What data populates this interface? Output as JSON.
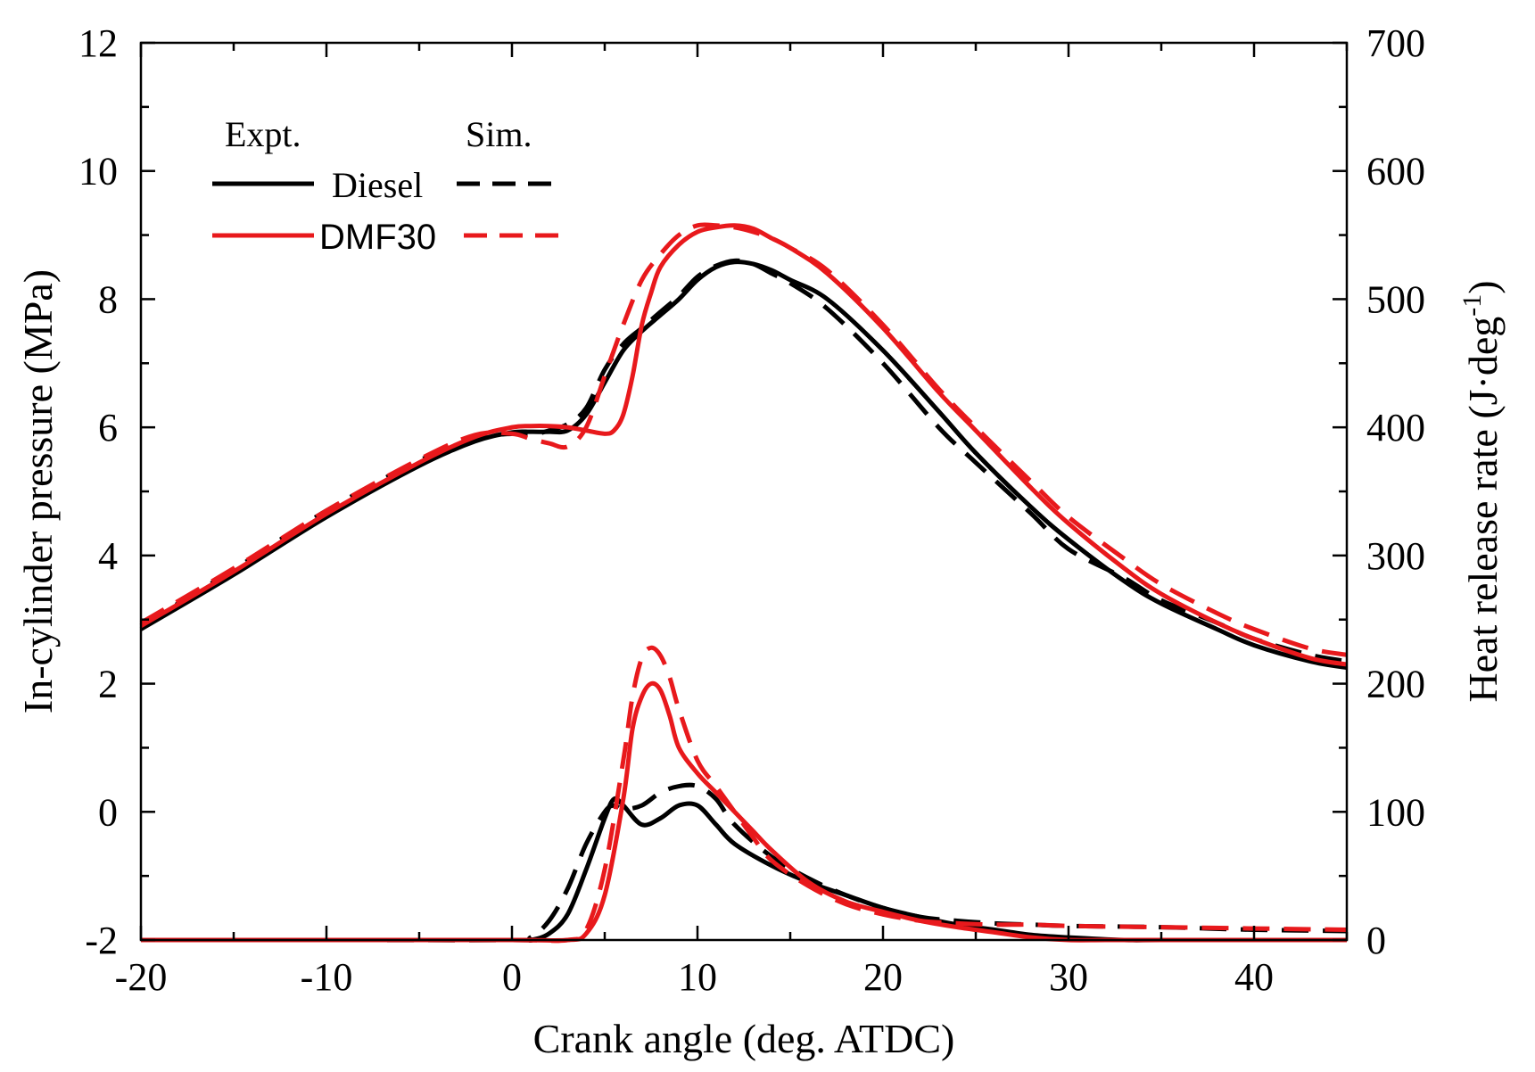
{
  "chart_data": {
    "type": "line",
    "title": "",
    "xlabel": "Crank angle (deg. ATDC)",
    "ylabel_left": "In-cylinder pressure (MPa)",
    "ylabel_right": "Heat release rate (J·deg",
    "ylabel_right_sup": "-1",
    "ylabel_right_close": ")",
    "xlim": [
      -20,
      45
    ],
    "ylim_left": [
      -2,
      12
    ],
    "ylim_right": [
      0,
      700
    ],
    "x_ticks": [
      -20,
      -10,
      0,
      10,
      20,
      30,
      40
    ],
    "x_tick_labels": [
      "-20",
      "-10",
      "0",
      "10",
      "20",
      "30",
      "40"
    ],
    "y_left_ticks": [
      -2,
      0,
      2,
      4,
      6,
      8,
      10,
      12
    ],
    "y_left_tick_labels": [
      "-2",
      "0",
      "2",
      "4",
      "6",
      "8",
      "10",
      "12"
    ],
    "y_right_ticks": [
      0,
      100,
      200,
      300,
      400,
      500,
      600,
      700
    ],
    "y_right_tick_labels": [
      "0",
      "100",
      "200",
      "300",
      "400",
      "500",
      "600",
      "700"
    ],
    "legend": {
      "placement": "top-left",
      "header_expt": "Expt.",
      "header_sim": "Sim.",
      "entries": [
        {
          "label": "Diesel",
          "color": "#000000"
        },
        {
          "label": "DMF30",
          "color": "#e8191c"
        }
      ]
    },
    "series": [
      {
        "name": "Diesel pressure Expt.",
        "axis": "left",
        "color": "#000000",
        "dash": "solid",
        "x": [
          -20,
          -15,
          -10,
          -5,
          -2,
          0,
          1,
          2,
          3,
          4,
          5,
          6,
          7,
          8,
          9,
          10,
          11,
          12,
          13,
          14,
          15,
          17,
          20,
          23,
          25,
          28,
          30,
          33,
          35,
          38,
          40,
          43,
          45
        ],
        "y": [
          2.85,
          3.7,
          4.6,
          5.4,
          5.78,
          5.92,
          5.93,
          5.93,
          5.95,
          6.2,
          6.7,
          7.2,
          7.5,
          7.75,
          8.0,
          8.3,
          8.5,
          8.58,
          8.55,
          8.45,
          8.3,
          8.0,
          7.2,
          6.25,
          5.6,
          4.75,
          4.25,
          3.6,
          3.25,
          2.85,
          2.6,
          2.35,
          2.25
        ]
      },
      {
        "name": "Diesel pressure Sim.",
        "axis": "left",
        "color": "#000000",
        "dash": "dashed",
        "x": [
          -20,
          -15,
          -10,
          -5,
          -2,
          0,
          1,
          2,
          3,
          4,
          5,
          6,
          7,
          8,
          9,
          10,
          11,
          12,
          13,
          14,
          15,
          17,
          20,
          23,
          25,
          28,
          30,
          33,
          35,
          38,
          40,
          43,
          45
        ],
        "y": [
          2.9,
          3.78,
          4.7,
          5.48,
          5.82,
          5.9,
          5.88,
          5.95,
          6.05,
          6.3,
          6.9,
          7.3,
          7.55,
          7.8,
          8.05,
          8.35,
          8.52,
          8.6,
          8.55,
          8.4,
          8.25,
          7.85,
          7.0,
          6.0,
          5.45,
          4.65,
          4.1,
          3.65,
          3.3,
          2.95,
          2.7,
          2.45,
          2.35
        ]
      },
      {
        "name": "DMF30 pressure Expt.",
        "axis": "left",
        "color": "#e8191c",
        "dash": "solid",
        "x": [
          -20,
          -15,
          -10,
          -5,
          -2,
          0,
          1,
          2,
          3,
          4,
          5,
          5.5,
          6,
          6.5,
          7,
          7.5,
          8,
          9,
          10,
          11,
          12,
          13,
          14,
          15,
          17,
          20,
          23,
          25,
          28,
          30,
          33,
          35,
          38,
          40,
          43,
          45
        ],
        "y": [
          2.9,
          3.75,
          4.65,
          5.45,
          5.85,
          6.0,
          6.02,
          6.02,
          6.0,
          5.95,
          5.9,
          5.95,
          6.2,
          6.8,
          7.6,
          8.1,
          8.5,
          8.85,
          9.05,
          9.12,
          9.15,
          9.1,
          8.95,
          8.8,
          8.4,
          7.55,
          6.55,
          5.95,
          5.05,
          4.5,
          3.8,
          3.4,
          2.95,
          2.7,
          2.4,
          2.3
        ]
      },
      {
        "name": "DMF30 pressure Sim.",
        "axis": "left",
        "color": "#e8191c",
        "dash": "dashed",
        "x": [
          -20,
          -15,
          -10,
          -5,
          -2,
          0,
          1,
          2,
          3,
          4,
          5,
          6,
          7,
          8,
          9,
          10,
          11,
          12,
          13,
          14,
          15,
          17,
          20,
          23,
          25,
          28,
          30,
          33,
          35,
          38,
          40,
          43,
          45
        ],
        "y": [
          2.95,
          3.8,
          4.7,
          5.5,
          5.88,
          5.9,
          5.82,
          5.75,
          5.7,
          6.0,
          6.8,
          7.6,
          8.3,
          8.7,
          9.0,
          9.15,
          9.15,
          9.12,
          9.05,
          8.95,
          8.8,
          8.45,
          7.6,
          6.6,
          6.0,
          5.15,
          4.6,
          3.95,
          3.55,
          3.1,
          2.85,
          2.55,
          2.45
        ]
      },
      {
        "name": "Diesel HRR Expt.",
        "axis": "right",
        "color": "#000000",
        "dash": "solid",
        "x": [
          -20,
          -10,
          0,
          1,
          2,
          3,
          4,
          5,
          5.5,
          6,
          7,
          8,
          9,
          10,
          11,
          12,
          14,
          16,
          18,
          20,
          22,
          24,
          26,
          28,
          30,
          33,
          35,
          40,
          45
        ],
        "y": [
          0,
          0,
          0,
          0,
          5,
          20,
          55,
          95,
          110,
          105,
          90,
          95,
          105,
          105,
          90,
          75,
          58,
          45,
          35,
          25,
          18,
          12,
          8,
          4,
          2,
          0,
          0,
          0,
          0
        ]
      },
      {
        "name": "Diesel HRR Sim.",
        "axis": "right",
        "color": "#000000",
        "dash": "dashed",
        "x": [
          -20,
          -10,
          0,
          1,
          2,
          3,
          4,
          5,
          5.5,
          6,
          7,
          8,
          9,
          10,
          11,
          12,
          14,
          16,
          18,
          20,
          22,
          24,
          26,
          28,
          30,
          35,
          40,
          45
        ],
        "y": [
          0,
          0,
          0,
          2,
          15,
          40,
          75,
          100,
          105,
          102,
          105,
          115,
          120,
          120,
          110,
          90,
          65,
          48,
          35,
          25,
          18,
          15,
          13,
          12,
          11,
          10,
          8,
          7
        ]
      },
      {
        "name": "DMF30 HRR Expt.",
        "axis": "right",
        "color": "#e8191c",
        "dash": "solid",
        "x": [
          -20,
          -10,
          0,
          3,
          4,
          5,
          6,
          6.5,
          7,
          7.5,
          8,
          8.5,
          9,
          10,
          11,
          12,
          13,
          14,
          16,
          18,
          20,
          22,
          24,
          26,
          28,
          30,
          32,
          35,
          40,
          45
        ],
        "y": [
          0,
          0,
          0,
          0,
          5,
          35,
          110,
          165,
          190,
          200,
          195,
          175,
          150,
          130,
          115,
          100,
          85,
          70,
          45,
          30,
          22,
          15,
          10,
          6,
          2,
          0,
          0,
          0,
          0,
          0
        ]
      },
      {
        "name": "DMF30 HRR Sim.",
        "axis": "right",
        "color": "#e8191c",
        "dash": "dashed",
        "x": [
          -20,
          -10,
          0,
          3,
          4,
          5,
          6,
          6.5,
          7,
          7.5,
          8,
          8.5,
          9,
          10,
          11,
          12,
          13,
          14,
          16,
          18,
          20,
          22,
          24,
          26,
          28,
          30,
          35,
          40,
          45
        ],
        "y": [
          0,
          0,
          0,
          0,
          8,
          55,
          140,
          190,
          220,
          228,
          222,
          205,
          180,
          140,
          120,
          100,
          80,
          62,
          42,
          28,
          20,
          15,
          13,
          12,
          12,
          11,
          10,
          9,
          8
        ]
      }
    ]
  }
}
